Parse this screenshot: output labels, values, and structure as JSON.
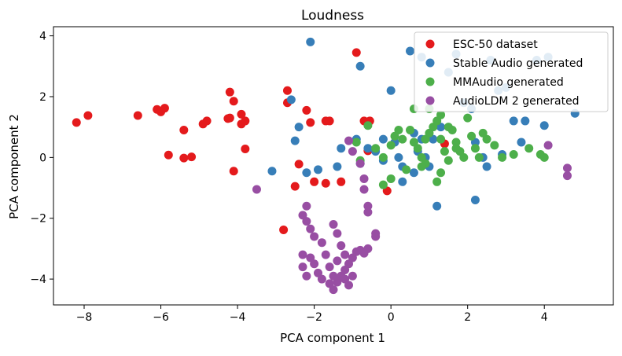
{
  "chart_data": {
    "type": "scatter",
    "title": "Loudness",
    "xlabel": "PCA component 1",
    "ylabel": "PCA component 2",
    "xlim": [
      -8.8,
      5.8
    ],
    "ylim": [
      -4.85,
      4.3
    ],
    "xticks": [
      -8,
      -6,
      -4,
      -2,
      0,
      2,
      4
    ],
    "yticks": [
      -4,
      -2,
      0,
      2,
      4
    ],
    "xtick_labels": [
      "−8",
      "−6",
      "−4",
      "−2",
      "0",
      "2",
      "4"
    ],
    "ytick_labels": [
      "−4",
      "−2",
      "0",
      "2",
      "4"
    ],
    "grid": false,
    "legend_position": "top-right",
    "series": [
      {
        "name": "ESC-50 dataset",
        "color": "#e41a1c",
        "points": [
          [
            -8.2,
            1.15
          ],
          [
            -7.9,
            1.38
          ],
          [
            -6.6,
            1.38
          ],
          [
            -6.1,
            1.58
          ],
          [
            -5.9,
            1.62
          ],
          [
            -6.0,
            1.5
          ],
          [
            -5.4,
            0.9
          ],
          [
            -5.8,
            0.08
          ],
          [
            -5.2,
            0.02
          ],
          [
            -5.4,
            -0.02
          ],
          [
            -4.9,
            1.1
          ],
          [
            -4.8,
            1.2
          ],
          [
            -4.2,
            2.15
          ],
          [
            -4.1,
            1.85
          ],
          [
            -4.2,
            1.3
          ],
          [
            -4.25,
            1.28
          ],
          [
            -3.9,
            1.42
          ],
          [
            -3.8,
            1.2
          ],
          [
            -3.9,
            1.1
          ],
          [
            -3.8,
            0.28
          ],
          [
            -4.1,
            -0.45
          ],
          [
            -2.7,
            2.2
          ],
          [
            -2.7,
            1.8
          ],
          [
            -2.2,
            1.55
          ],
          [
            -1.7,
            1.2
          ],
          [
            -1.6,
            1.2
          ],
          [
            -2.4,
            -0.22
          ],
          [
            -2.5,
            -0.95
          ],
          [
            -2.0,
            -0.8
          ],
          [
            -1.7,
            -0.85
          ],
          [
            -1.3,
            -0.8
          ],
          [
            -0.9,
            3.45
          ],
          [
            -0.7,
            1.2
          ],
          [
            -0.55,
            1.2
          ],
          [
            -0.6,
            0.22
          ],
          [
            -0.1,
            -1.1
          ],
          [
            -2.8,
            -2.38
          ],
          [
            -2.1,
            1.15
          ],
          [
            1.4,
            0.45
          ]
        ]
      },
      {
        "name": "Stable Audio generated",
        "color": "#377eb8",
        "points": [
          [
            -2.1,
            3.8
          ],
          [
            -2.6,
            1.9
          ],
          [
            -2.4,
            1.0
          ],
          [
            -2.5,
            0.55
          ],
          [
            -3.1,
            -0.45
          ],
          [
            -2.2,
            -0.5
          ],
          [
            -1.9,
            -0.4
          ],
          [
            -1.4,
            -0.3
          ],
          [
            -1.3,
            0.3
          ],
          [
            -0.8,
            3.0
          ],
          [
            -0.9,
            0.6
          ],
          [
            -0.6,
            0.3
          ],
          [
            -0.4,
            0.2
          ],
          [
            -0.2,
            0.6
          ],
          [
            -0.2,
            -0.1
          ],
          [
            0.0,
            2.2
          ],
          [
            0.1,
            0.5
          ],
          [
            0.2,
            0.0
          ],
          [
            0.3,
            -0.3
          ],
          [
            0.5,
            3.5
          ],
          [
            0.8,
            3.3
          ],
          [
            0.6,
            0.8
          ],
          [
            0.7,
            0.2
          ],
          [
            0.9,
            0.0
          ],
          [
            1.0,
            -0.3
          ],
          [
            1.2,
            -1.6
          ],
          [
            1.5,
            2.8
          ],
          [
            1.7,
            3.4
          ],
          [
            1.9,
            1.8
          ],
          [
            2.1,
            1.6
          ],
          [
            2.2,
            0.5
          ],
          [
            2.4,
            0.0
          ],
          [
            2.5,
            -0.3
          ],
          [
            2.2,
            -1.4
          ],
          [
            2.6,
            3.2
          ],
          [
            2.8,
            2.2
          ],
          [
            3.0,
            2.3
          ],
          [
            3.2,
            1.2
          ],
          [
            3.5,
            1.2
          ],
          [
            3.8,
            3.2
          ],
          [
            4.0,
            1.05
          ],
          [
            4.1,
            3.3
          ],
          [
            4.8,
            1.45
          ],
          [
            0.3,
            -0.8
          ],
          [
            0.6,
            -0.5
          ],
          [
            1.1,
            0.6
          ],
          [
            1.3,
            1.0
          ],
          [
            2.9,
            0.1
          ],
          [
            3.4,
            0.5
          ],
          [
            0.8,
            0.6
          ],
          [
            -0.8,
            -0.2
          ]
        ]
      },
      {
        "name": "MMAudio generated",
        "color": "#4daf4a",
        "points": [
          [
            -0.6,
            1.05
          ],
          [
            -0.9,
            0.5
          ],
          [
            -0.4,
            0.3
          ],
          [
            -0.8,
            -0.1
          ],
          [
            -0.2,
            0.0
          ],
          [
            0.0,
            0.4
          ],
          [
            0.1,
            0.7
          ],
          [
            0.3,
            0.6
          ],
          [
            0.5,
            0.9
          ],
          [
            0.6,
            0.5
          ],
          [
            0.7,
            0.3
          ],
          [
            0.8,
            0.0
          ],
          [
            0.9,
            -0.2
          ],
          [
            1.0,
            0.8
          ],
          [
            1.1,
            1.0
          ],
          [
            1.2,
            1.2
          ],
          [
            1.3,
            0.6
          ],
          [
            1.4,
            0.2
          ],
          [
            1.5,
            -0.1
          ],
          [
            1.6,
            0.9
          ],
          [
            1.7,
            0.5
          ],
          [
            1.8,
            0.2
          ],
          [
            1.9,
            0.0
          ],
          [
            2.0,
            1.3
          ],
          [
            2.1,
            0.7
          ],
          [
            2.2,
            0.3
          ],
          [
            2.3,
            0.0
          ],
          [
            2.5,
            0.6
          ],
          [
            2.7,
            0.4
          ],
          [
            2.9,
            0.0
          ],
          [
            3.2,
            0.1
          ],
          [
            3.6,
            0.3
          ],
          [
            3.9,
            0.1
          ],
          [
            4.0,
            0.0
          ],
          [
            1.2,
            -0.8
          ],
          [
            1.3,
            -0.5
          ],
          [
            0.8,
            -0.3
          ],
          [
            0.4,
            -0.4
          ],
          [
            0.0,
            -0.7
          ],
          [
            -0.2,
            -0.9
          ],
          [
            1.5,
            1.0
          ],
          [
            1.0,
            1.6
          ],
          [
            0.6,
            1.6
          ],
          [
            1.3,
            1.4
          ],
          [
            1.7,
            0.3
          ],
          [
            2.4,
            0.8
          ],
          [
            0.9,
            0.6
          ],
          [
            0.2,
            0.9
          ]
        ]
      },
      {
        "name": "AudioLDM 2 generated",
        "color": "#984ea3",
        "points": [
          [
            -3.5,
            -1.05
          ],
          [
            -1.1,
            0.55
          ],
          [
            -1.0,
            0.2
          ],
          [
            -0.8,
            -0.2
          ],
          [
            -0.7,
            -0.7
          ],
          [
            -0.7,
            -1.05
          ],
          [
            -0.6,
            -1.6
          ],
          [
            -0.6,
            -1.8
          ],
          [
            -0.4,
            -2.5
          ],
          [
            -2.2,
            -1.6
          ],
          [
            -2.3,
            -1.9
          ],
          [
            -2.2,
            -2.1
          ],
          [
            -2.1,
            -2.35
          ],
          [
            -2.0,
            -2.6
          ],
          [
            -1.8,
            -2.8
          ],
          [
            -1.5,
            -2.2
          ],
          [
            -1.4,
            -2.5
          ],
          [
            -1.3,
            -2.9
          ],
          [
            -2.3,
            -3.2
          ],
          [
            -2.1,
            -3.3
          ],
          [
            -2.0,
            -3.5
          ],
          [
            -1.9,
            -3.8
          ],
          [
            -1.8,
            -4.0
          ],
          [
            -1.6,
            -4.15
          ],
          [
            -1.5,
            -4.35
          ],
          [
            -1.4,
            -4.1
          ],
          [
            -1.3,
            -3.9
          ],
          [
            -1.2,
            -3.7
          ],
          [
            -1.1,
            -3.5
          ],
          [
            -1.0,
            -3.3
          ],
          [
            -0.9,
            -3.1
          ],
          [
            -0.8,
            -3.05
          ],
          [
            -0.7,
            -3.15
          ],
          [
            -0.6,
            -3.0
          ],
          [
            -1.0,
            -3.9
          ],
          [
            -1.2,
            -4.0
          ],
          [
            -1.6,
            -3.6
          ],
          [
            -1.4,
            -3.4
          ],
          [
            -1.2,
            -3.2
          ],
          [
            -2.3,
            -3.6
          ],
          [
            -2.2,
            -3.9
          ],
          [
            -1.7,
            -3.2
          ],
          [
            -1.1,
            -4.2
          ],
          [
            -0.4,
            -2.6
          ],
          [
            4.1,
            0.4
          ],
          [
            4.6,
            -0.35
          ],
          [
            4.6,
            -0.6
          ],
          [
            -1.5,
            -3.9
          ]
        ]
      }
    ]
  }
}
